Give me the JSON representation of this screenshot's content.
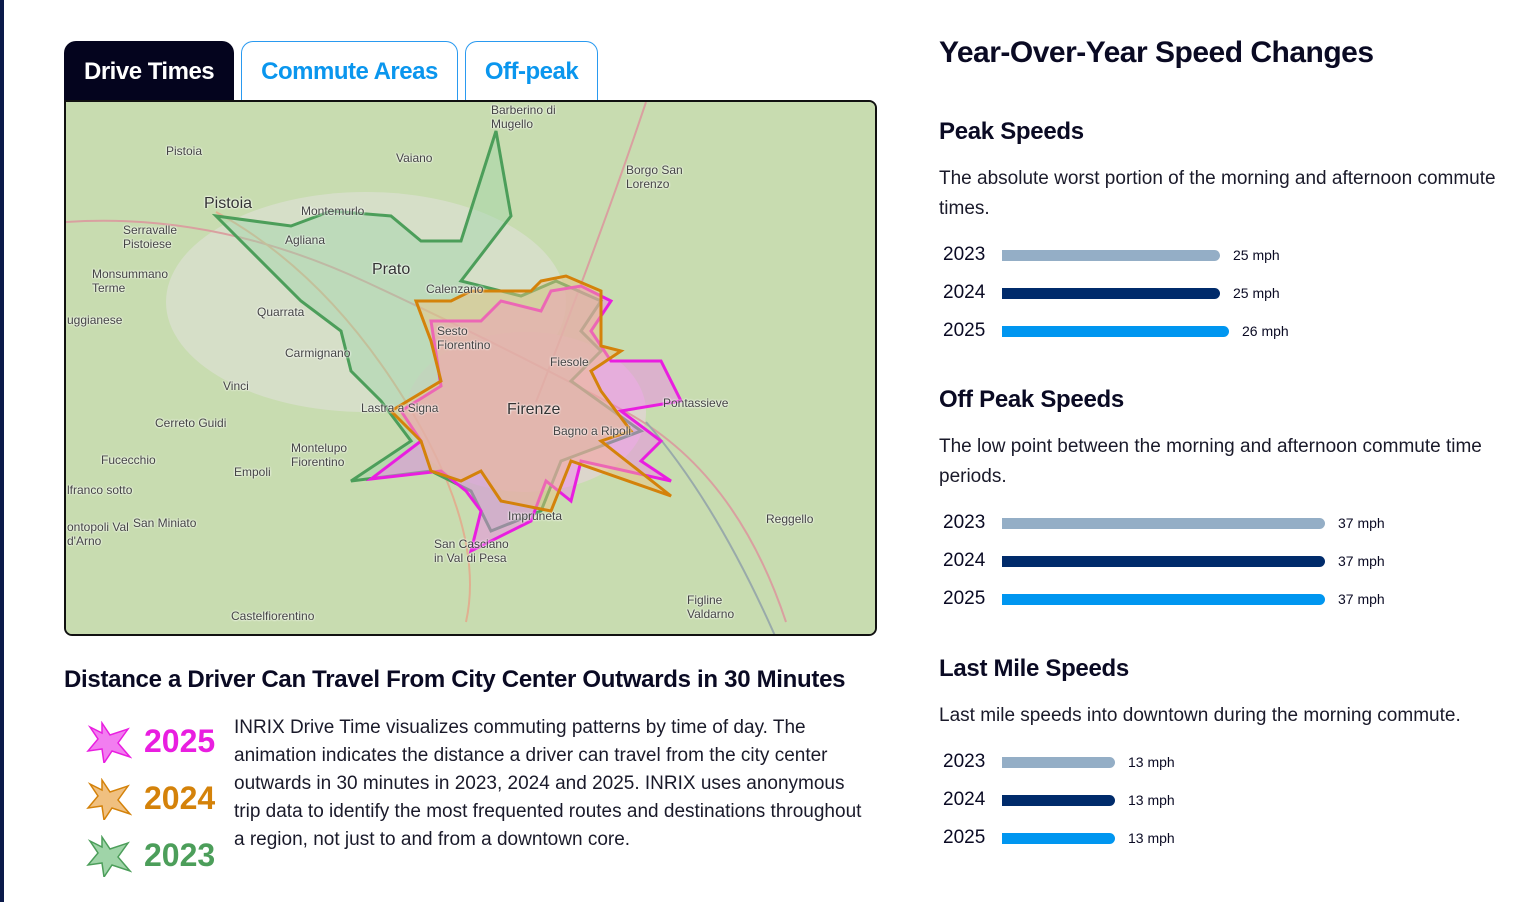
{
  "tabs": [
    {
      "label": "Drive Times",
      "active": true
    },
    {
      "label": "Commute Areas",
      "active": false
    },
    {
      "label": "Off-peak",
      "active": false
    }
  ],
  "map": {
    "labels": [
      "Barberino di Mugello",
      "Vaiano",
      "Borgo San Lorenzo",
      "Pistoia",
      "Pistoia",
      "Montemurlo",
      "Serravalle Pistoiese",
      "Agliana",
      "Prato",
      "Calenzano",
      "Monsummano Terme",
      "Quarrata",
      "Sesto Fiorentino",
      "uggianese",
      "Carmignano",
      "Fiesole",
      "Vinci",
      "Pontassieve",
      "Lastra a Signa",
      "Firenze",
      "Cerreto Guidi",
      "Bagno a Ripoli",
      "Montelupo Fiorentino",
      "Fucecchio",
      "Empoli",
      "lfranco sotto",
      "Reggello",
      "ontopoli Val d'Arno",
      "San Miniato",
      "Impruneta",
      "San Casciano in Val di Pesa",
      "Figline Valdarno",
      "Castelfiorentino"
    ]
  },
  "caption": "Distance a Driver Can Travel From City Center Outwards in 30 Minutes",
  "legend": [
    {
      "year": "2025",
      "color": "#e91ee0",
      "fill": "#f27ef0"
    },
    {
      "year": "2024",
      "color": "#d4820a",
      "fill": "#f0c080"
    },
    {
      "year": "2023",
      "color": "#4c9e5a",
      "fill": "#9fd4a8"
    }
  ],
  "description": "INRIX Drive Time visualizes commuting patterns by time of day. The animation indicates the distance a driver can travel from the city center outwards in 30 minutes in 2023, 2024 and 2025. INRIX uses anonymous trip data to identify the most frequented routes and destinations throughout a region, not just to and from a downtown core.",
  "right": {
    "title": "Year-Over-Year Speed Changes",
    "colors": {
      "2023": "#94aec6",
      "2024": "#002b6b",
      "2025": "#0096f0"
    },
    "sections": [
      {
        "title": "Peak Speeds",
        "desc": "The absolute worst portion of the morning and afternoon commute times.",
        "rows": [
          {
            "year": "2023",
            "mph": 25,
            "label": "25 mph"
          },
          {
            "year": "2024",
            "mph": 25,
            "label": "25 mph"
          },
          {
            "year": "2025",
            "mph": 26,
            "label": "26 mph"
          }
        ]
      },
      {
        "title": "Off Peak Speeds",
        "desc": "The low point between the morning and afternoon commute time periods.",
        "rows": [
          {
            "year": "2023",
            "mph": 37,
            "label": "37 mph"
          },
          {
            "year": "2024",
            "mph": 37,
            "label": "37 mph"
          },
          {
            "year": "2025",
            "mph": 37,
            "label": "37 mph"
          }
        ]
      },
      {
        "title": "Last Mile Speeds",
        "desc": "Last mile speeds into downtown during the morning commute.",
        "rows": [
          {
            "year": "2023",
            "mph": 13,
            "label": "13 mph"
          },
          {
            "year": "2024",
            "mph": 13,
            "label": "13 mph"
          },
          {
            "year": "2025",
            "mph": 13,
            "label": "13 mph"
          }
        ]
      }
    ]
  }
}
